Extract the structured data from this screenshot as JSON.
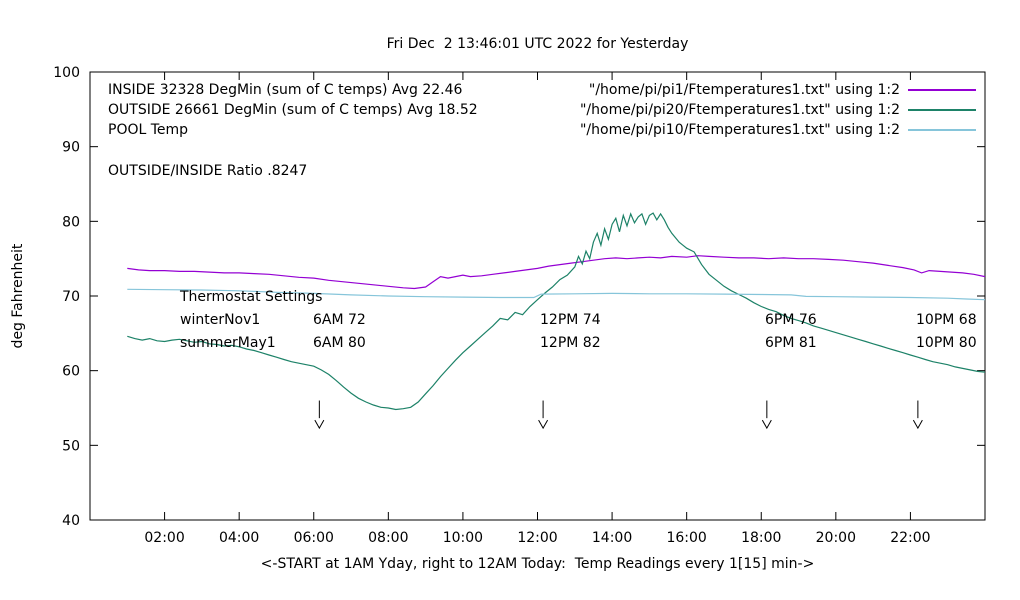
{
  "chart_data": {
    "type": "line",
    "title": "Fri Dec  2 13:46:01 UTC 2022 for Yesterday",
    "xlabel": "<-START at 1AM Yday, right to 12AM Today:  Temp Readings every 1[15] min->",
    "ylabel": "deg Fahrenheit",
    "xlim": [
      0,
      24
    ],
    "ylim": [
      40,
      100
    ],
    "grid": false,
    "legend_position": "top-left-inside",
    "xticks": {
      "values": [
        2,
        4,
        6,
        8,
        10,
        12,
        14,
        16,
        18,
        20,
        22
      ],
      "labels": [
        "02:00",
        "04:00",
        "06:00",
        "08:00",
        "10:00",
        "12:00",
        "14:00",
        "16:00",
        "18:00",
        "20:00",
        "22:00"
      ]
    },
    "yticks": [
      40,
      50,
      60,
      70,
      80,
      90,
      100
    ],
    "legend": [
      {
        "name": "INSIDE",
        "label_left": "INSIDE 32328 DegMin (sum of C temps) Avg 22.46",
        "label_right": "\"/home/pi/pi1/Ftemperatures1.txt\" using 1:2",
        "color": "#9400d3"
      },
      {
        "name": "OUTSIDE",
        "label_left": "OUTSIDE 26661 DegMin (sum of C temps) Avg 18.52",
        "label_right": "\"/home/pi/pi20/Ftemperatures1.txt\" using 1:2",
        "color": "#1d8268"
      },
      {
        "name": "POOL",
        "label_left": "POOL Temp",
        "label_right": "\"/home/pi/pi10/Ftemperatures1.txt\" using 1:2",
        "color": "#86c5da"
      }
    ],
    "ratio_note": "OUTSIDE/INSIDE Ratio .8247",
    "annotations": {
      "thermostat_title": "Thermostat Settings",
      "rows": [
        {
          "name": "winterNov1",
          "cols": [
            "6AM 72",
            "12PM 74",
            "6PM 76",
            "10PM 68"
          ]
        },
        {
          "name": "summerMay1",
          "cols": [
            "6AM 80",
            "12PM 82",
            "6PM 81",
            "10PM 80"
          ]
        }
      ]
    },
    "arrows": [
      {
        "x": 6.15,
        "y_from": 56.0,
        "y_to": 52.3
      },
      {
        "x": 12.15,
        "y_from": 56.0,
        "y_to": 52.3
      },
      {
        "x": 18.15,
        "y_from": 56.0,
        "y_to": 52.3
      },
      {
        "x": 22.2,
        "y_from": 56.0,
        "y_to": 52.3
      }
    ],
    "series": [
      {
        "name": "INSIDE",
        "color": "#9400d3",
        "points": [
          [
            1,
            73.7
          ],
          [
            1.3,
            73.5
          ],
          [
            1.6,
            73.4
          ],
          [
            2,
            73.4
          ],
          [
            2.4,
            73.3
          ],
          [
            2.8,
            73.3
          ],
          [
            3.2,
            73.2
          ],
          [
            3.6,
            73.1
          ],
          [
            4,
            73.1
          ],
          [
            4.4,
            73.0
          ],
          [
            4.8,
            72.9
          ],
          [
            5.2,
            72.7
          ],
          [
            5.6,
            72.5
          ],
          [
            6,
            72.4
          ],
          [
            6.4,
            72.1
          ],
          [
            6.8,
            71.9
          ],
          [
            7.2,
            71.7
          ],
          [
            7.6,
            71.5
          ],
          [
            8,
            71.3
          ],
          [
            8.4,
            71.1
          ],
          [
            8.7,
            71.0
          ],
          [
            9,
            71.2
          ],
          [
            9.2,
            71.9
          ],
          [
            9.4,
            72.6
          ],
          [
            9.6,
            72.4
          ],
          [
            9.8,
            72.6
          ],
          [
            10,
            72.8
          ],
          [
            10.2,
            72.6
          ],
          [
            10.5,
            72.7
          ],
          [
            10.8,
            72.9
          ],
          [
            11.1,
            73.1
          ],
          [
            11.4,
            73.3
          ],
          [
            11.7,
            73.5
          ],
          [
            12,
            73.7
          ],
          [
            12.3,
            74.0
          ],
          [
            12.6,
            74.2
          ],
          [
            12.9,
            74.4
          ],
          [
            13.2,
            74.6
          ],
          [
            13.5,
            74.8
          ],
          [
            13.8,
            75.0
          ],
          [
            14.1,
            75.1
          ],
          [
            14.4,
            75.0
          ],
          [
            14.7,
            75.1
          ],
          [
            15,
            75.2
          ],
          [
            15.3,
            75.1
          ],
          [
            15.6,
            75.3
          ],
          [
            16,
            75.2
          ],
          [
            16.3,
            75.4
          ],
          [
            16.6,
            75.3
          ],
          [
            17,
            75.2
          ],
          [
            17.4,
            75.1
          ],
          [
            17.8,
            75.1
          ],
          [
            18.2,
            75.0
          ],
          [
            18.6,
            75.1
          ],
          [
            19,
            75.0
          ],
          [
            19.4,
            75.0
          ],
          [
            19.8,
            74.9
          ],
          [
            20.2,
            74.8
          ],
          [
            20.6,
            74.6
          ],
          [
            21,
            74.4
          ],
          [
            21.4,
            74.1
          ],
          [
            21.8,
            73.8
          ],
          [
            22.1,
            73.5
          ],
          [
            22.3,
            73.1
          ],
          [
            22.5,
            73.4
          ],
          [
            22.8,
            73.3
          ],
          [
            23.1,
            73.2
          ],
          [
            23.4,
            73.1
          ],
          [
            23.7,
            72.9
          ],
          [
            24,
            72.6
          ]
        ]
      },
      {
        "name": "OUTSIDE",
        "color": "#1d8268",
        "points": [
          [
            1,
            64.6
          ],
          [
            1.2,
            64.3
          ],
          [
            1.4,
            64.1
          ],
          [
            1.6,
            64.3
          ],
          [
            1.8,
            64.0
          ],
          [
            2,
            63.9
          ],
          [
            2.2,
            64.1
          ],
          [
            2.4,
            64.2
          ],
          [
            2.6,
            64.0
          ],
          [
            2.8,
            63.8
          ],
          [
            3,
            63.9
          ],
          [
            3.2,
            63.6
          ],
          [
            3.4,
            63.5
          ],
          [
            3.6,
            63.3
          ],
          [
            3.8,
            63.4
          ],
          [
            4,
            63.2
          ],
          [
            4.2,
            62.9
          ],
          [
            4.4,
            62.7
          ],
          [
            4.6,
            62.4
          ],
          [
            4.8,
            62.1
          ],
          [
            5,
            61.8
          ],
          [
            5.2,
            61.5
          ],
          [
            5.4,
            61.2
          ],
          [
            5.6,
            61.0
          ],
          [
            5.8,
            60.8
          ],
          [
            6,
            60.6
          ],
          [
            6.2,
            60.1
          ],
          [
            6.4,
            59.5
          ],
          [
            6.6,
            58.7
          ],
          [
            6.8,
            57.8
          ],
          [
            7,
            57.0
          ],
          [
            7.2,
            56.3
          ],
          [
            7.4,
            55.8
          ],
          [
            7.6,
            55.4
          ],
          [
            7.8,
            55.1
          ],
          [
            8,
            55.0
          ],
          [
            8.2,
            54.8
          ],
          [
            8.4,
            54.9
          ],
          [
            8.6,
            55.1
          ],
          [
            8.8,
            55.8
          ],
          [
            9,
            56.9
          ],
          [
            9.2,
            58.0
          ],
          [
            9.4,
            59.2
          ],
          [
            9.6,
            60.3
          ],
          [
            9.8,
            61.4
          ],
          [
            10,
            62.4
          ],
          [
            10.2,
            63.3
          ],
          [
            10.4,
            64.2
          ],
          [
            10.6,
            65.1
          ],
          [
            10.8,
            66.0
          ],
          [
            11,
            67.0
          ],
          [
            11.2,
            66.8
          ],
          [
            11.4,
            67.8
          ],
          [
            11.6,
            67.5
          ],
          [
            11.8,
            68.6
          ],
          [
            12,
            69.5
          ],
          [
            12.2,
            70.4
          ],
          [
            12.4,
            71.2
          ],
          [
            12.6,
            72.2
          ],
          [
            12.8,
            72.8
          ],
          [
            13,
            73.9
          ],
          [
            13.1,
            75.3
          ],
          [
            13.2,
            74.3
          ],
          [
            13.3,
            76.0
          ],
          [
            13.4,
            75.0
          ],
          [
            13.5,
            77.2
          ],
          [
            13.6,
            78.4
          ],
          [
            13.7,
            76.8
          ],
          [
            13.8,
            79.0
          ],
          [
            13.9,
            77.6
          ],
          [
            14,
            79.6
          ],
          [
            14.1,
            80.4
          ],
          [
            14.2,
            78.6
          ],
          [
            14.3,
            80.8
          ],
          [
            14.4,
            79.4
          ],
          [
            14.5,
            81.0
          ],
          [
            14.6,
            79.8
          ],
          [
            14.7,
            80.6
          ],
          [
            14.8,
            81.0
          ],
          [
            14.9,
            79.6
          ],
          [
            15,
            80.8
          ],
          [
            15.1,
            81.1
          ],
          [
            15.2,
            80.2
          ],
          [
            15.3,
            81.0
          ],
          [
            15.4,
            80.2
          ],
          [
            15.5,
            79.2
          ],
          [
            15.6,
            78.4
          ],
          [
            15.7,
            77.8
          ],
          [
            15.8,
            77.2
          ],
          [
            15.9,
            76.8
          ],
          [
            16,
            76.4
          ],
          [
            16.2,
            75.9
          ],
          [
            16.4,
            74.2
          ],
          [
            16.6,
            72.9
          ],
          [
            16.8,
            72.1
          ],
          [
            17,
            71.3
          ],
          [
            17.2,
            70.7
          ],
          [
            17.4,
            70.2
          ],
          [
            17.6,
            69.7
          ],
          [
            17.8,
            69.1
          ],
          [
            18,
            68.6
          ],
          [
            18.2,
            68.2
          ],
          [
            18.4,
            67.9
          ],
          [
            18.6,
            67.4
          ],
          [
            18.8,
            67.0
          ],
          [
            19,
            66.7
          ],
          [
            19.2,
            66.4
          ],
          [
            19.4,
            66.0
          ],
          [
            19.6,
            65.7
          ],
          [
            19.8,
            65.4
          ],
          [
            20,
            65.1
          ],
          [
            20.2,
            64.8
          ],
          [
            20.4,
            64.5
          ],
          [
            20.6,
            64.2
          ],
          [
            20.8,
            63.9
          ],
          [
            21,
            63.6
          ],
          [
            21.2,
            63.3
          ],
          [
            21.4,
            63.0
          ],
          [
            21.6,
            62.7
          ],
          [
            21.8,
            62.4
          ],
          [
            22,
            62.1
          ],
          [
            22.2,
            61.8
          ],
          [
            22.4,
            61.5
          ],
          [
            22.6,
            61.2
          ],
          [
            22.8,
            61.0
          ],
          [
            23,
            60.8
          ],
          [
            23.2,
            60.5
          ],
          [
            23.4,
            60.3
          ],
          [
            23.6,
            60.1
          ],
          [
            23.8,
            59.9
          ],
          [
            24,
            59.8
          ]
        ]
      },
      {
        "name": "POOL",
        "color": "#86c5da",
        "points": [
          [
            1,
            70.9
          ],
          [
            2,
            70.85
          ],
          [
            3,
            70.8
          ],
          [
            4,
            70.7
          ],
          [
            5,
            70.5
          ],
          [
            6,
            70.35
          ],
          [
            7,
            70.15
          ],
          [
            8,
            70.0
          ],
          [
            9,
            69.9
          ],
          [
            10,
            69.85
          ],
          [
            11,
            69.8
          ],
          [
            11.9,
            69.8
          ],
          [
            12.1,
            70.25
          ],
          [
            13,
            70.3
          ],
          [
            14,
            70.35
          ],
          [
            15,
            70.3
          ],
          [
            16,
            70.3
          ],
          [
            17,
            70.25
          ],
          [
            18,
            70.2
          ],
          [
            18.8,
            70.15
          ],
          [
            19.2,
            69.95
          ],
          [
            20,
            69.9
          ],
          [
            21,
            69.85
          ],
          [
            22,
            69.8
          ],
          [
            23,
            69.7
          ],
          [
            23.5,
            69.6
          ],
          [
            24,
            69.5
          ]
        ]
      }
    ]
  }
}
